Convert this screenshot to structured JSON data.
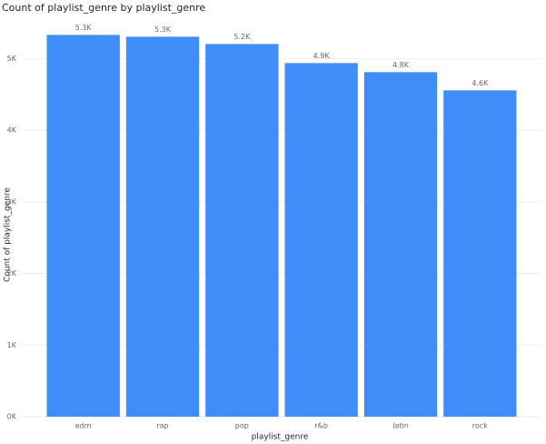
{
  "chart_data": {
    "type": "bar",
    "title": "Count of playlist_genre by playlist_genre",
    "x_label": "playlist_genre",
    "y_label": "Count of playlist_genre",
    "categories": [
      "edm",
      "rap",
      "pop",
      "r&b",
      "latin",
      "rock"
    ],
    "values": [
      5330,
      5305,
      5203,
      4937,
      4810,
      4556
    ],
    "value_labels": [
      "5.3K",
      "5.3K",
      "5.2K",
      "4.9K",
      "4.8K",
      "4.6K"
    ],
    "color": "#3f8ef8",
    "ylim": [
      0,
      5500
    ],
    "yticks": [
      {
        "value": 0,
        "label": "0K"
      },
      {
        "value": 1000,
        "label": "1K"
      },
      {
        "value": 2000,
        "label": "2K"
      },
      {
        "value": 3000,
        "label": "3K"
      },
      {
        "value": 4000,
        "label": "4K"
      },
      {
        "value": 5000,
        "label": "5K"
      }
    ],
    "grid": true
  }
}
